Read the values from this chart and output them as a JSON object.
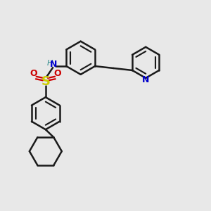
{
  "bg_color": "#e8e8e8",
  "bond_color": "#1a1a1a",
  "bond_width": 1.8,
  "figsize": [
    3.0,
    3.0
  ],
  "dpi": 100,
  "xlim": [
    0,
    10
  ],
  "ylim": [
    0,
    10
  ],
  "N_color": "#0000cc",
  "H_color": "#2e8b8b",
  "S_color": "#cccc00",
  "O_color": "#cc0000"
}
